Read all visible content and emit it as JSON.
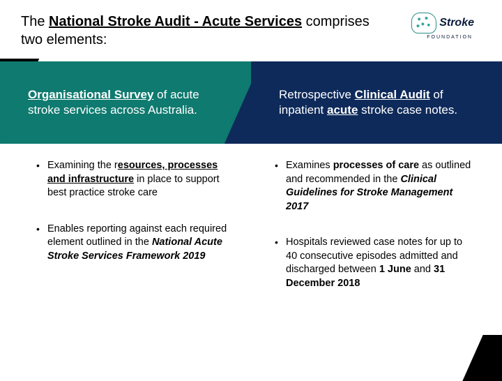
{
  "colors": {
    "teal": "#0f7a6f",
    "navy": "#0e2a5a",
    "black": "#000000",
    "white": "#ffffff"
  },
  "header": {
    "line_html": "The <b><u>National Stroke Audit - Acute Services</u></b> comprises two elements:"
  },
  "logo": {
    "word": "Stroke",
    "sub": "FOUNDATION"
  },
  "banners": {
    "left_html": "<b><u>Organisational Survey</u></b> of acute stroke services across Australia.",
    "right_html": "Retrospective <b><u>Clinical Audit</u></b> of inpatient <b><u>acute</u></b> stroke case notes."
  },
  "left_bullets": [
    "Examining the r<b><u>esources, processes and infrastructure</u></b> in place to support best practice stroke care",
    "Enables reporting against each required element outlined in the <b><i>National Acute Stroke Services Framework 2019</i></b>"
  ],
  "right_bullets": [
    "Examines <b>processes of care</b> as outlined and recommended in the <b><i>Clinical Guidelines for Stroke Management 2017</i></b>",
    "Hospitals reviewed case notes for up to 40 consecutive episodes admitted and discharged between <b>1 June</b> and <b>31 December 2018</b>"
  ]
}
